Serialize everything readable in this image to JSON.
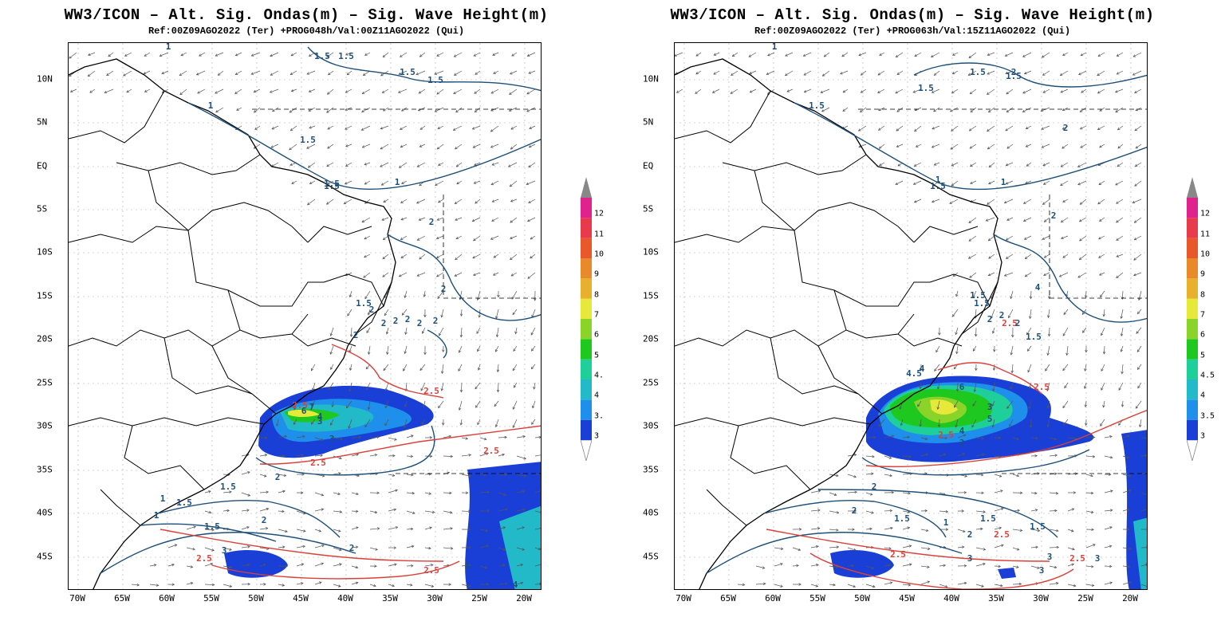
{
  "panels": [
    {
      "title": "WW3/ICON – Alt. Sig. Ondas(m) – Sig. Wave Height(m)",
      "subtitle": "Ref:00Z09AGO2022 (Ter) +PROG048h/Val:00Z11AGO2022 (Qui)",
      "contour_labels": [
        "1",
        "1.5",
        "1.5",
        "1.5",
        "1.5",
        "1",
        "1.5",
        "1.5",
        "1",
        "1.5",
        "2",
        "2",
        "1.5",
        "2",
        "2",
        "2",
        "2",
        "2",
        "2",
        "2",
        "2.5",
        "2.5",
        "3",
        "3",
        "4",
        "6",
        "7",
        "2.5",
        "2.5",
        "2",
        "1.5",
        "1",
        "1.5",
        "2",
        "1.5",
        "2",
        "1",
        "2.5",
        "3",
        "2.5",
        "3",
        "4"
      ]
    },
    {
      "title": "WW3/ICON – Alt. Sig. Ondas(m) – Sig. Wave Height(m)",
      "subtitle": "Ref:00Z09AGO2022 (Ter) +PROG063h/Val:15Z11AGO2022 (Qui)",
      "contour_labels": [
        "1",
        "2",
        "1.5",
        "1.5",
        "1.5",
        "1.5",
        "1",
        "1.5",
        "1",
        "2",
        "2",
        "1.5",
        "1.5",
        "2",
        "2",
        "2.5",
        "2",
        "1.5",
        "4",
        "4.5",
        "4",
        "6",
        "3",
        "5",
        "4",
        "3",
        "2.5",
        "2.5",
        "2",
        "2",
        "1.5",
        "1",
        "1.5",
        "1.5",
        "2",
        "2.5",
        "2.5",
        "3",
        "3",
        "2.5",
        "3",
        "3"
      ]
    }
  ],
  "lat_labels": [
    "10N",
    "5N",
    "EQ",
    "5S",
    "10S",
    "15S",
    "20S",
    "25S",
    "30S",
    "35S",
    "40S",
    "45S"
  ],
  "lon_labels": [
    "70W",
    "65W",
    "60W",
    "55W",
    "50W",
    "45W",
    "40W",
    "35W",
    "30W",
    "25W",
    "20W"
  ],
  "colorbar": {
    "labels_left": [
      "3",
      "3.",
      "4",
      "4.",
      "5",
      "6",
      "7",
      "8",
      "9",
      "10",
      "11",
      "12"
    ],
    "labels_right": [
      "3",
      "3.5",
      "4",
      "4.5",
      "5",
      "6",
      "7",
      "8",
      "9",
      "10",
      "11",
      "12"
    ],
    "colors": [
      "#1a3fd6",
      "#1e8fea",
      "#22b9c8",
      "#1fcf9a",
      "#1ec81e",
      "#8ad42a",
      "#e6e83a",
      "#e8b02c",
      "#e88a2a",
      "#e8582a",
      "#e83a4a",
      "#e0238c"
    ]
  },
  "colors": {
    "contour_blue": "#1d4f78",
    "contour_red": "#d9413a",
    "land_line": "#000000",
    "arrow": "#555555"
  }
}
